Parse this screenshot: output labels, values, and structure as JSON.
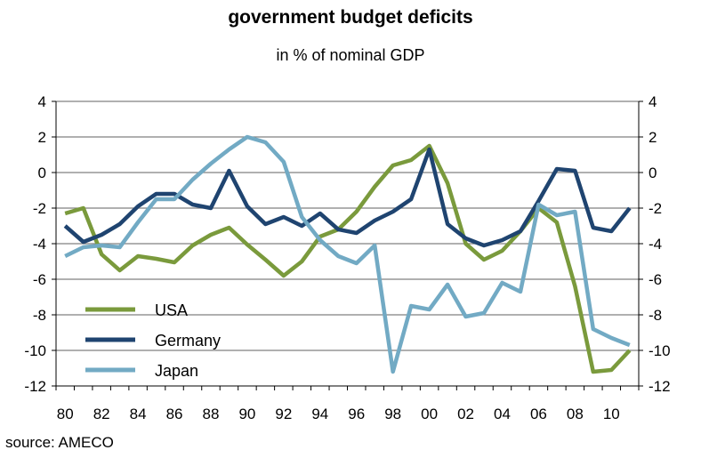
{
  "chart_data": {
    "type": "line",
    "title": "government budget deficits",
    "subtitle": "in % of nominal GDP",
    "source": "source: AMECO",
    "x_tick_labels": [
      "80",
      "82",
      "84",
      "86",
      "88",
      "90",
      "92",
      "94",
      "96",
      "98",
      "00",
      "02",
      "04",
      "06",
      "08",
      "10"
    ],
    "y_tick_labels": [
      "4",
      "2",
      "0",
      "-2",
      "-4",
      "-6",
      "-8",
      "-10",
      "-12"
    ],
    "ylim": [
      -12,
      4
    ],
    "x": [
      1980,
      1981,
      1982,
      1983,
      1984,
      1985,
      1986,
      1987,
      1988,
      1989,
      1990,
      1991,
      1992,
      1993,
      1994,
      1995,
      1996,
      1997,
      1998,
      1999,
      2000,
      2001,
      2002,
      2003,
      2004,
      2005,
      2006,
      2007,
      2008,
      2009,
      2010,
      2011
    ],
    "series": [
      {
        "name": "USA",
        "color": "#7a9a3c",
        "values": [
          -2.3,
          -2.0,
          -4.6,
          -5.5,
          -4.7,
          -4.85,
          -5.05,
          -4.1,
          -3.5,
          -3.1,
          -4.05,
          -4.9,
          -5.8,
          -5.0,
          -3.6,
          -3.2,
          -2.2,
          -0.8,
          0.4,
          0.7,
          1.5,
          -0.6,
          -4.0,
          -4.9,
          -4.4,
          -3.3,
          -2.0,
          -2.8,
          -6.4,
          -11.2,
          -11.1,
          -10.0
        ]
      },
      {
        "name": "Germany",
        "color": "#1f4470",
        "values": [
          -3.0,
          -3.9,
          -3.5,
          -2.9,
          -1.9,
          -1.2,
          -1.2,
          -1.8,
          -2.0,
          0.1,
          -1.9,
          -2.9,
          -2.5,
          -3.0,
          -2.3,
          -3.2,
          -3.4,
          -2.7,
          -2.2,
          -1.5,
          1.3,
          -2.9,
          -3.7,
          -4.1,
          -3.8,
          -3.3,
          -1.6,
          0.2,
          0.1,
          -3.1,
          -3.3,
          -2.0
        ]
      },
      {
        "name": "Japan",
        "color": "#72aac4",
        "values": [
          -4.7,
          -4.2,
          -4.1,
          -4.2,
          -2.8,
          -1.5,
          -1.5,
          -0.4,
          0.5,
          1.3,
          2.0,
          1.7,
          0.6,
          -2.5,
          -3.8,
          -4.7,
          -5.1,
          -4.1,
          -11.2,
          -7.5,
          -7.7,
          -6.3,
          -8.1,
          -7.9,
          -6.2,
          -6.7,
          -1.8,
          -2.4,
          -2.2,
          -8.8,
          -9.3,
          -9.7
        ]
      }
    ],
    "legend_position": "bottom-left",
    "grid": true
  }
}
